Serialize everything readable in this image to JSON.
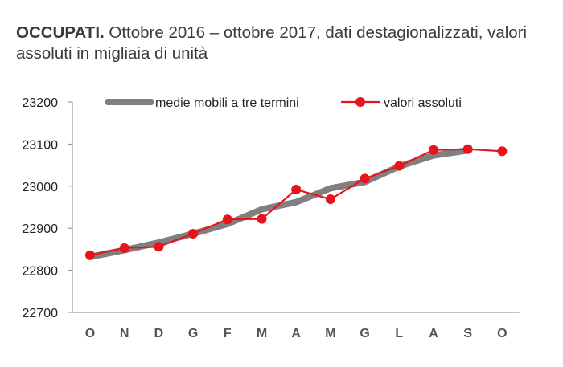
{
  "title": {
    "bold": "OCCUPATI.",
    "rest": " Ottobre 2016 – ottobre 2017, dati destagionalizzati, valori assoluti in migliaia di unità"
  },
  "colors": {
    "moving_avg": "#808080",
    "absolute": "#e8141c",
    "axis": "#888888"
  },
  "chart_data": {
    "type": "line",
    "categories": [
      "O",
      "N",
      "D",
      "G",
      "F",
      "M",
      "A",
      "M",
      "G",
      "L",
      "A",
      "S",
      "O"
    ],
    "ylim": [
      22700,
      23200
    ],
    "yticks": [
      22700,
      22800,
      22900,
      23000,
      23100,
      23200
    ],
    "series": [
      {
        "name": "medie mobili a tre termini",
        "style": "thick-gray-line",
        "values": [
          22832,
          22848,
          22866,
          22887,
          22910,
          22945,
          22962,
          22995,
          23010,
          23047,
          23073,
          23085,
          null
        ]
      },
      {
        "name": "valori assoluti",
        "style": "red-line-markers",
        "values": [
          22836,
          22853,
          22856,
          22887,
          22921,
          22922,
          22992,
          22969,
          23018,
          23048,
          23086,
          23088,
          23083
        ]
      }
    ]
  }
}
